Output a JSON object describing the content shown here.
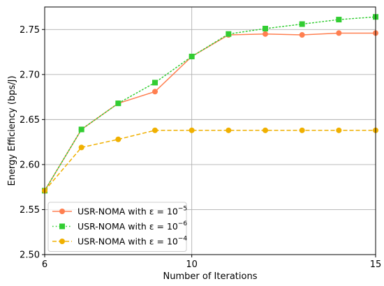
{
  "chart_data": {
    "type": "line",
    "title": "",
    "xlabel": "Number of Iterations",
    "ylabel": "Energy Efficiency (bps/J)",
    "xlim": [
      6,
      15
    ],
    "ylim": [
      2.5,
      2.775
    ],
    "xticks": [
      6,
      10,
      15
    ],
    "xtick_labels": [
      "6",
      "10",
      "15"
    ],
    "yticks": [
      2.5,
      2.55,
      2.6,
      2.65,
      2.7,
      2.75
    ],
    "ytick_labels": [
      "2.50",
      "2.55",
      "2.60",
      "2.65",
      "2.70",
      "2.75"
    ],
    "grid": true,
    "legend_position": "lower-left",
    "series": [
      {
        "name_prefix": "USR-NOMA with ε = 10",
        "name_exponent": "−5",
        "color": "#ff7f50",
        "line_style": "solid",
        "marker": "circle",
        "x": [
          6,
          7,
          8,
          9,
          10,
          11,
          12,
          13,
          14,
          15
        ],
        "y": [
          2.571,
          2.639,
          2.668,
          2.681,
          2.72,
          2.744,
          2.745,
          2.744,
          2.746,
          2.746
        ]
      },
      {
        "name_prefix": "USR-NOMA with ε = 10",
        "name_exponent": "−6",
        "color": "#32cd32",
        "line_style": "dotted",
        "marker": "square",
        "x": [
          6,
          7,
          8,
          9,
          10,
          11,
          12,
          13,
          14,
          15
        ],
        "y": [
          2.571,
          2.639,
          2.668,
          2.691,
          2.72,
          2.745,
          2.751,
          2.756,
          2.761,
          2.764
        ]
      },
      {
        "name_prefix": "USR-NOMA with ε = 10",
        "name_exponent": "−4",
        "color": "#f0b000",
        "line_style": "dashed",
        "marker": "circle",
        "x": [
          6,
          7,
          8,
          9,
          10,
          11,
          12,
          13,
          14,
          15
        ],
        "y": [
          2.571,
          2.619,
          2.628,
          2.638,
          2.638,
          2.638,
          2.638,
          2.638,
          2.638,
          2.638
        ]
      }
    ]
  }
}
